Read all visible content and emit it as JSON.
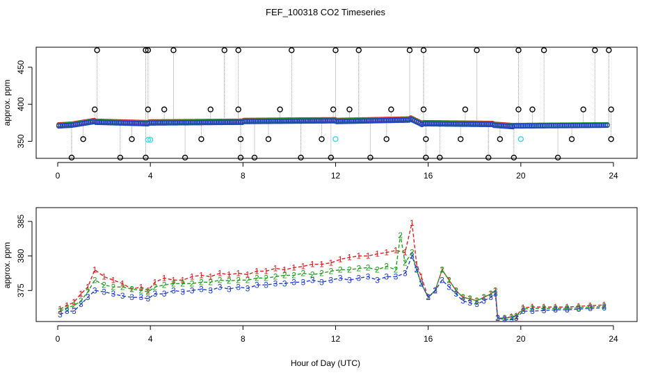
{
  "figure": {
    "title": "FEF_100318  CO2 Timeseries",
    "xlabel": "Hour of Day (UTC)"
  },
  "chart_data": [
    {
      "type": "scatter",
      "name": "top-panel",
      "ylabel": "approx. ppm",
      "xlim": [
        0,
        24
      ],
      "ylim": [
        327,
        477
      ],
      "xticks": [
        0,
        4,
        8,
        12,
        16,
        20,
        24
      ],
      "yticks": [
        350,
        400,
        450
      ],
      "tick_labels_x": [
        "0",
        "4",
        "8",
        "12",
        "16",
        "20",
        "24"
      ],
      "tick_labels_y": [
        "350",
        "400",
        "450"
      ],
      "series": [
        {
          "name": "line-connection",
          "color": "#999999",
          "style": "dotted"
        },
        {
          "name": "red",
          "color": "#e31a1c"
        },
        {
          "name": "green",
          "color": "#1aa01a"
        },
        {
          "name": "blue",
          "color": "#1f3fd0"
        },
        {
          "name": "black",
          "color": "#000000"
        },
        {
          "name": "cyan",
          "color": "#39d7e6"
        }
      ],
      "baseline_segments": [
        {
          "x0": 0.0,
          "x1": 0.6,
          "y0": 371,
          "y1": 372
        },
        {
          "x0": 0.6,
          "x1": 1.6,
          "y0": 372,
          "y1": 377
        },
        {
          "x0": 1.6,
          "x1": 3.9,
          "y0": 376,
          "y1": 374
        },
        {
          "x0": 3.9,
          "x1": 8.0,
          "y0": 375,
          "y1": 376
        },
        {
          "x0": 8.0,
          "x1": 12.0,
          "y0": 377,
          "y1": 378
        },
        {
          "x0": 12.0,
          "x1": 15.2,
          "y0": 377,
          "y1": 379
        },
        {
          "x0": 15.2,
          "x1": 15.8,
          "y0": 381,
          "y1": 372
        },
        {
          "x0": 15.8,
          "x1": 18.8,
          "y0": 374,
          "y1": 373
        },
        {
          "x0": 18.8,
          "x1": 19.7,
          "y0": 372,
          "y1": 370
        },
        {
          "x0": 19.7,
          "x1": 23.8,
          "y0": 371,
          "y1": 372
        }
      ],
      "spikes_high": [
        1.7,
        3.8,
        3.9,
        5.0,
        7.2,
        7.8,
        10.1,
        12.0,
        13.0,
        15.2,
        15.8,
        18.1,
        19.9,
        21.0,
        23.2,
        23.8
      ],
      "spikes_high_value": 473,
      "spikes_mid": [
        1.6,
        3.9,
        4.6,
        6.6,
        7.8,
        9.6,
        11.9,
        12.6,
        14.4,
        15.8,
        17.6,
        19.9,
        20.5,
        22.7,
        23.9
      ],
      "spikes_mid_value": 393,
      "spikes_low": [
        0.6,
        2.7,
        3.8,
        5.5,
        7.9,
        8.5,
        10.5,
        11.8,
        13.5,
        15.9,
        16.5,
        18.6,
        19.7,
        21.6
      ],
      "spikes_low_value": 328,
      "spikes_350": [
        1.1,
        3.2,
        6.2,
        7.9,
        9.1,
        11.4,
        14.2,
        15.9,
        17.4,
        19.1,
        22.2,
        23.9
      ],
      "spikes_350_value": 353,
      "cyan_points": [
        [
          3.9,
          352
        ],
        [
          4.0,
          352
        ],
        [
          12.0,
          353
        ],
        [
          20.0,
          353
        ]
      ]
    },
    {
      "type": "line",
      "name": "bottom-panel",
      "ylabel": "approx. ppm",
      "xlim": [
        0,
        24
      ],
      "ylim": [
        370.5,
        387
      ],
      "xticks": [
        0,
        4,
        8,
        12,
        16,
        20,
        24
      ],
      "yticks": [
        375,
        380,
        385
      ],
      "tick_labels_x": [
        "0",
        "4",
        "8",
        "12",
        "16",
        "20",
        "24"
      ],
      "tick_labels_y": [
        "375",
        "380",
        "385"
      ],
      "series": [
        {
          "name": "1",
          "label": "1",
          "color": "#e31a1c",
          "x": [
            0.1,
            0.4,
            0.7,
            1.0,
            1.3,
            1.6,
            2.0,
            2.4,
            2.8,
            3.2,
            3.6,
            3.9,
            4.2,
            4.6,
            5.0,
            5.4,
            5.8,
            6.2,
            6.6,
            7.0,
            7.4,
            7.8,
            8.2,
            8.6,
            9.0,
            9.4,
            9.8,
            10.2,
            10.6,
            11.0,
            11.4,
            11.8,
            12.2,
            12.6,
            13.0,
            13.4,
            13.8,
            14.2,
            14.6,
            15.0,
            15.3,
            15.5,
            15.7,
            16.0,
            16.3,
            16.6,
            16.9,
            17.2,
            17.5,
            17.8,
            18.1,
            18.4,
            18.7,
            18.9,
            19.0,
            19.3,
            19.6,
            19.8,
            20.1,
            20.5,
            21.0,
            21.5,
            22.0,
            22.5,
            23.0,
            23.6
          ],
          "y": [
            372.3,
            372.8,
            373.3,
            374.5,
            375.5,
            378.0,
            377.0,
            376.5,
            376.0,
            375.2,
            375.5,
            375.0,
            376.2,
            376.8,
            376.5,
            376.5,
            377.0,
            377.2,
            377.0,
            377.5,
            377.3,
            377.5,
            377.3,
            377.8,
            377.8,
            378.2,
            378.0,
            378.3,
            378.5,
            378.8,
            378.8,
            379.0,
            379.5,
            379.8,
            380.0,
            380.0,
            380.3,
            380.5,
            380.8,
            380.5,
            384.8,
            378.8,
            377.0,
            374.0,
            375.0,
            378.0,
            376.5,
            375.0,
            374.0,
            373.8,
            373.5,
            374.0,
            374.5,
            375.0,
            371.0,
            371.0,
            371.2,
            371.3,
            372.5,
            372.6,
            372.6,
            372.6,
            372.6,
            372.7,
            372.8,
            372.9
          ]
        },
        {
          "name": "2",
          "label": "2",
          "color": "#1aa01a",
          "x": [
            0.1,
            0.4,
            0.7,
            1.0,
            1.3,
            1.6,
            2.0,
            2.4,
            2.8,
            3.2,
            3.6,
            3.9,
            4.2,
            4.6,
            5.0,
            5.4,
            5.8,
            6.2,
            6.6,
            7.0,
            7.4,
            7.8,
            8.2,
            8.6,
            9.0,
            9.4,
            9.8,
            10.2,
            10.6,
            11.0,
            11.4,
            11.8,
            12.2,
            12.6,
            13.0,
            13.4,
            13.8,
            14.2,
            14.6,
            14.8,
            15.0,
            15.3,
            15.5,
            15.7,
            16.0,
            16.3,
            16.6,
            16.9,
            17.2,
            17.5,
            17.8,
            18.1,
            18.4,
            18.7,
            18.9,
            19.0,
            19.3,
            19.6,
            19.8,
            20.1,
            20.5,
            21.0,
            21.5,
            22.0,
            22.5,
            23.0,
            23.6
          ],
          "y": [
            372.0,
            372.5,
            372.8,
            373.5,
            374.8,
            376.5,
            375.8,
            375.5,
            375.5,
            375.2,
            375.0,
            374.8,
            375.5,
            375.8,
            376.0,
            376.0,
            376.0,
            376.2,
            376.2,
            376.5,
            376.4,
            376.5,
            376.5,
            376.8,
            376.8,
            377.0,
            377.2,
            377.2,
            377.5,
            377.3,
            377.5,
            377.8,
            378.0,
            378.0,
            378.2,
            378.3,
            378.0,
            378.5,
            378.0,
            383.0,
            379.0,
            380.5,
            378.0,
            376.0,
            374.0,
            375.0,
            378.0,
            376.5,
            375.0,
            374.0,
            373.8,
            373.5,
            374.0,
            374.5,
            375.0,
            371.0,
            371.0,
            371.1,
            371.2,
            372.3,
            372.4,
            372.4,
            372.4,
            372.4,
            372.5,
            372.6,
            372.7
          ]
        },
        {
          "name": "3",
          "label": "3",
          "color": "#1f3fd0",
          "x": [
            0.1,
            0.4,
            0.7,
            1.0,
            1.3,
            1.6,
            2.0,
            2.4,
            2.8,
            3.2,
            3.6,
            3.9,
            4.2,
            4.6,
            5.0,
            5.4,
            5.8,
            6.2,
            6.6,
            7.0,
            7.4,
            7.8,
            8.2,
            8.6,
            9.0,
            9.4,
            9.8,
            10.2,
            10.6,
            11.0,
            11.4,
            11.8,
            12.2,
            12.6,
            13.0,
            13.4,
            13.8,
            14.2,
            14.6,
            15.0,
            15.3,
            15.5,
            15.7,
            16.0,
            16.3,
            16.6,
            16.9,
            17.2,
            17.5,
            17.8,
            18.1,
            18.4,
            18.7,
            18.9,
            19.0,
            19.3,
            19.6,
            19.8,
            20.1,
            20.5,
            21.0,
            21.5,
            22.0,
            22.5,
            23.0,
            23.6
          ],
          "y": [
            371.5,
            372.0,
            372.0,
            373.0,
            374.0,
            375.0,
            374.8,
            374.5,
            374.2,
            374.0,
            374.0,
            373.8,
            374.5,
            374.5,
            375.0,
            374.8,
            375.0,
            375.2,
            375.0,
            375.5,
            375.2,
            375.5,
            375.3,
            375.8,
            375.8,
            376.0,
            376.0,
            376.2,
            376.2,
            376.5,
            376.2,
            376.5,
            376.8,
            376.5,
            376.8,
            377.0,
            376.5,
            377.0,
            377.0,
            377.5,
            380.0,
            378.0,
            376.0,
            374.0,
            375.0,
            376.5,
            375.5,
            374.5,
            373.5,
            373.2,
            373.0,
            373.5,
            374.0,
            374.5,
            371.0,
            370.8,
            370.8,
            371.0,
            372.0,
            372.0,
            372.1,
            372.2,
            372.2,
            372.3,
            372.4,
            372.5
          ]
        }
      ]
    }
  ]
}
